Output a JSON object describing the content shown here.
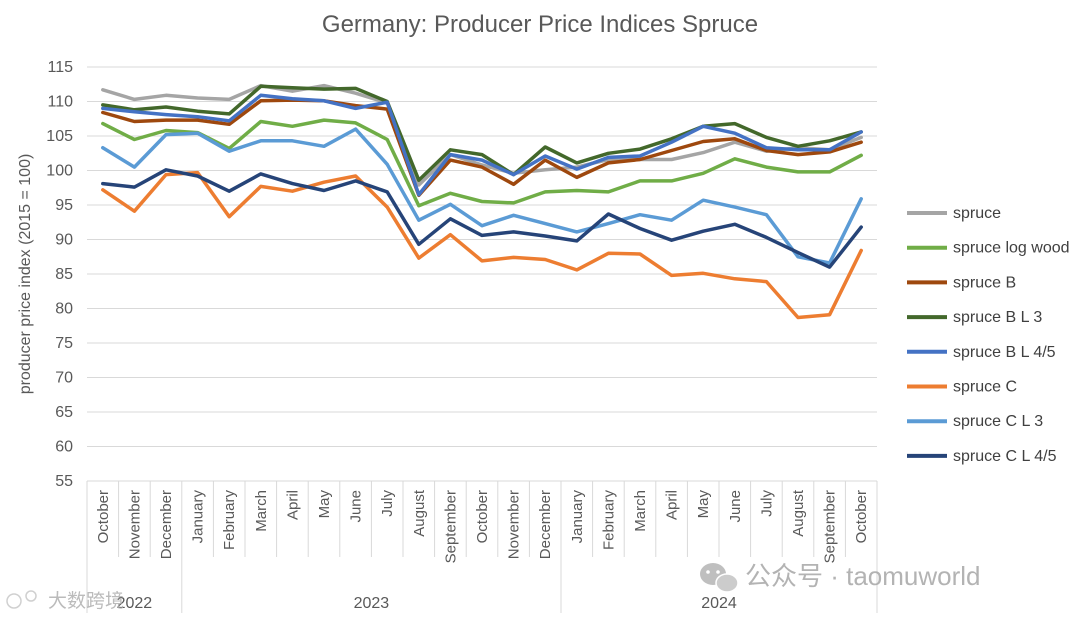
{
  "chart_data": {
    "type": "line",
    "title": "Germany: Producer Price Indices Spruce",
    "ylabel": "producer price index (2015 = 100)",
    "xlabel": "",
    "ylim": [
      55,
      115
    ],
    "yticks": [
      55,
      60,
      65,
      70,
      75,
      80,
      85,
      90,
      95,
      100,
      105,
      110,
      115
    ],
    "grid": true,
    "legend_position": "right",
    "categories": [
      "October",
      "November",
      "December",
      "January",
      "February",
      "March",
      "April",
      "May",
      "June",
      "July",
      "August",
      "September",
      "October",
      "November",
      "December",
      "January",
      "February",
      "March",
      "April",
      "May",
      "June",
      "July",
      "August",
      "September",
      "October"
    ],
    "year_groups": [
      {
        "label": "2022",
        "count": 3
      },
      {
        "label": "2023",
        "count": 12
      },
      {
        "label": "2024",
        "count": 10
      }
    ],
    "series": [
      {
        "name": "spruce",
        "color": "#a5a5a5",
        "values": [
          111.7,
          110.3,
          110.9,
          110.5,
          110.3,
          112.3,
          111.5,
          112.3,
          111.2,
          109.8,
          97.9,
          102.3,
          100.8,
          99.6,
          100.1,
          100.5,
          101.6,
          101.6,
          101.6,
          102.6,
          104.1,
          102.8,
          103.3,
          103.0,
          104.8
        ]
      },
      {
        "name": "spruce log wood",
        "color": "#70ad47",
        "values": [
          106.8,
          104.5,
          105.8,
          105.5,
          103.2,
          107.1,
          106.4,
          107.3,
          106.9,
          104.5,
          94.9,
          96.7,
          95.5,
          95.3,
          96.9,
          97.1,
          96.9,
          98.5,
          98.5,
          99.6,
          101.7,
          100.5,
          99.8,
          99.8,
          102.2
        ]
      },
      {
        "name": "spruce B",
        "color": "#9e480e",
        "values": [
          108.4,
          107.1,
          107.3,
          107.3,
          106.7,
          110.1,
          110.2,
          110.1,
          109.4,
          108.9,
          96.4,
          101.5,
          100.5,
          98.0,
          101.5,
          99.0,
          101.1,
          101.6,
          102.9,
          104.2,
          104.6,
          102.9,
          102.3,
          102.7,
          104.1
        ]
      },
      {
        "name": "spruce B L 3",
        "color": "#43682b",
        "values": [
          109.5,
          108.8,
          109.2,
          108.6,
          108.2,
          112.2,
          112.0,
          111.8,
          111.9,
          110.0,
          98.6,
          103.0,
          102.3,
          99.4,
          103.4,
          101.1,
          102.5,
          103.1,
          104.6,
          106.4,
          106.8,
          104.8,
          103.5,
          104.3,
          105.6
        ]
      },
      {
        "name": "spruce B L 4/5",
        "color": "#4472c4",
        "values": [
          109.0,
          108.5,
          108.1,
          107.8,
          107.2,
          110.9,
          110.4,
          110.1,
          109.0,
          109.9,
          96.5,
          102.3,
          101.5,
          99.4,
          102.1,
          100.2,
          101.9,
          102.1,
          104.1,
          106.4,
          105.4,
          103.3,
          103.0,
          103.0,
          105.6
        ]
      },
      {
        "name": "spruce C",
        "color": "#ed7d31",
        "values": [
          97.2,
          94.1,
          99.4,
          99.7,
          93.3,
          97.7,
          97.0,
          98.3,
          99.2,
          94.7,
          87.3,
          90.7,
          86.9,
          87.4,
          87.1,
          85.6,
          88.0,
          87.9,
          84.8,
          85.1,
          84.3,
          83.9,
          78.7,
          79.1,
          88.4
        ]
      },
      {
        "name": "spruce C L 3",
        "color": "#5b9bd5",
        "values": [
          103.3,
          100.5,
          105.2,
          105.4,
          102.8,
          104.3,
          104.3,
          103.5,
          106.0,
          100.9,
          92.8,
          95.1,
          92.0,
          93.5,
          92.3,
          91.1,
          92.3,
          93.6,
          92.8,
          95.7,
          94.7,
          93.6,
          87.5,
          86.6,
          95.9
        ]
      },
      {
        "name": "spruce C L 4/5",
        "color": "#264478",
        "values": [
          98.1,
          97.6,
          100.1,
          99.2,
          97.0,
          99.5,
          98.1,
          97.1,
          98.5,
          96.9,
          89.3,
          93.0,
          90.6,
          91.1,
          90.5,
          89.8,
          93.7,
          91.6,
          89.9,
          91.2,
          92.2,
          90.3,
          88.1,
          86.0,
          91.8
        ]
      }
    ]
  },
  "watermark": {
    "left_text": "大数跨境",
    "right_text": "公众号 · taomuworld"
  }
}
